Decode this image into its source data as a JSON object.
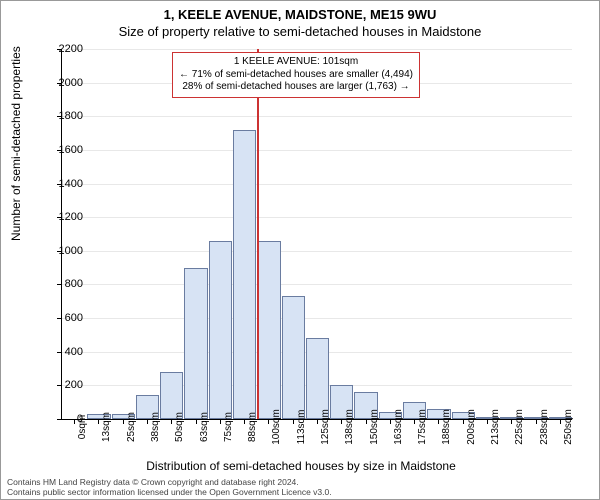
{
  "titles": {
    "line1": "1, KEELE AVENUE, MAIDSTONE, ME15 9WU",
    "line2": "Size of property relative to semi-detached houses in Maidstone"
  },
  "chart": {
    "type": "histogram",
    "ylabel": "Number of semi-detached properties",
    "xlabel": "Distribution of semi-detached houses by size in Maidstone",
    "ylim": [
      0,
      2200
    ],
    "ytick_step": 200,
    "xticks": [
      "0sqm",
      "13sqm",
      "25sqm",
      "38sqm",
      "50sqm",
      "63sqm",
      "75sqm",
      "88sqm",
      "100sqm",
      "113sqm",
      "125sqm",
      "138sqm",
      "150sqm",
      "163sqm",
      "175sqm",
      "188sqm",
      "200sqm",
      "213sqm",
      "225sqm",
      "238sqm",
      "250sqm"
    ],
    "values": [
      0,
      30,
      30,
      140,
      280,
      900,
      1060,
      1720,
      1060,
      730,
      480,
      200,
      160,
      40,
      100,
      60,
      40,
      10,
      10,
      10,
      10
    ],
    "bar_fill": "#d7e3f4",
    "bar_border": "#6a7ca0",
    "grid_color": "#e8e8e8",
    "marker_x_index": 8,
    "marker_color": "#cc3333"
  },
  "annotation": {
    "line1": "1 KEELE AVENUE: 101sqm",
    "line2": "← 71% of semi-detached houses are smaller (4,494)",
    "line3": "28% of semi-detached houses are larger (1,763) →",
    "border_color": "#cc3333"
  },
  "footer": {
    "line1": "Contains HM Land Registry data © Crown copyright and database right 2024.",
    "line2": "Contains public sector information licensed under the Open Government Licence v3.0."
  }
}
